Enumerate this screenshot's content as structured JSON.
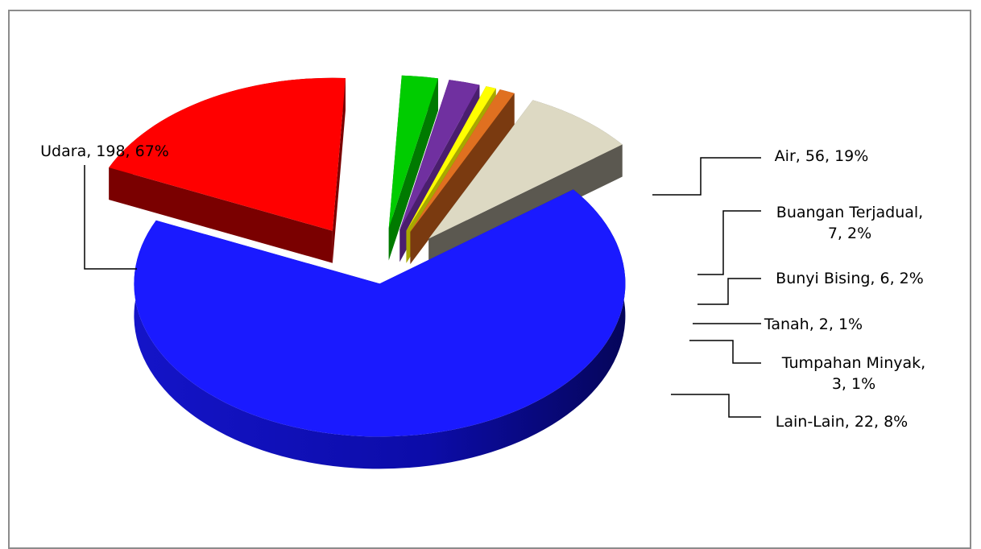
{
  "chart_data": {
    "type": "pie",
    "title": "",
    "legend": "none",
    "slices": [
      {
        "name": "Udara",
        "value": 198,
        "percent": "67%",
        "color": "#1a1aff"
      },
      {
        "name": "Air",
        "value": 56,
        "percent": "19%",
        "color": "#ff0000"
      },
      {
        "name": "Buangan Terjadual",
        "value": 7,
        "percent": "2%",
        "color": "#00cc00"
      },
      {
        "name": "Bunyi Bising",
        "value": 6,
        "percent": "2%",
        "color": "#7030a0"
      },
      {
        "name": "Tanah",
        "value": 2,
        "percent": "1%",
        "color": "#ffff00"
      },
      {
        "name": "Tumpahan Minyak",
        "value": 3,
        "percent": "1%",
        "color": "#e07020"
      },
      {
        "name": "Lain-Lain",
        "value": 22,
        "percent": "8%",
        "color": "#ddd9c3"
      }
    ],
    "labels": [
      {
        "lines": [
          "Udara, 198, 67%"
        ]
      },
      {
        "lines": [
          "Air, 56, 19%"
        ]
      },
      {
        "lines": [
          "Buangan Terjadual,",
          "7, 2%"
        ]
      },
      {
        "lines": [
          "Bunyi Bising, 6, 2%"
        ]
      },
      {
        "lines": [
          "Tanah, 2, 1%"
        ]
      },
      {
        "lines": [
          "Tumpahan Minyak,",
          "3, 1%"
        ]
      },
      {
        "lines": [
          "Lain-Lain, 22, 8%"
        ]
      }
    ]
  }
}
